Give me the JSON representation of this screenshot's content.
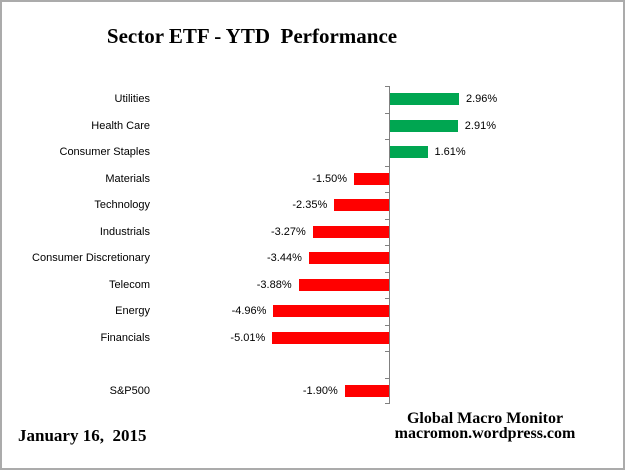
{
  "title": "Sector ETF - YTD  Performance",
  "footer": {
    "date": "January 16,  2015",
    "brand_line1": "Global Macro Monitor",
    "brand_line2": "macromon.wordpress.com"
  },
  "colors": {
    "positive_bar": "#00A651",
    "negative_bar": "#FF0000",
    "axis": "#808080",
    "frame_border": "#ABABAB",
    "text": "#000000"
  },
  "chart_data": {
    "type": "bar",
    "orientation": "horizontal",
    "title": "Sector ETF - YTD  Performance",
    "xlabel": "",
    "ylabel": "",
    "xlim": [
      -5.5,
      3.5
    ],
    "grid": false,
    "legend": false,
    "value_format": "percent",
    "separator_after_category": "Financials",
    "categories": [
      "Utilities",
      "Health Care",
      "Consumer Staples",
      "Materials",
      "Technology",
      "Industrials",
      "Consumer Discretionary",
      "Telecom",
      "Energy",
      "Financials",
      "S&P500"
    ],
    "values": [
      2.96,
      2.91,
      1.61,
      -1.5,
      -2.35,
      -3.27,
      -3.44,
      -3.88,
      -4.96,
      -5.01,
      -1.9
    ],
    "value_labels": [
      "2.96%",
      "2.91%",
      "1.61%",
      "-1.50%",
      "-2.35%",
      "-3.27%",
      "-3.44%",
      "-3.88%",
      "-4.96%",
      "-5.01%",
      "-1.90%"
    ],
    "slots": [
      0,
      1,
      2,
      3,
      4,
      5,
      6,
      7,
      8,
      9,
      11
    ],
    "slot_count": 12
  }
}
